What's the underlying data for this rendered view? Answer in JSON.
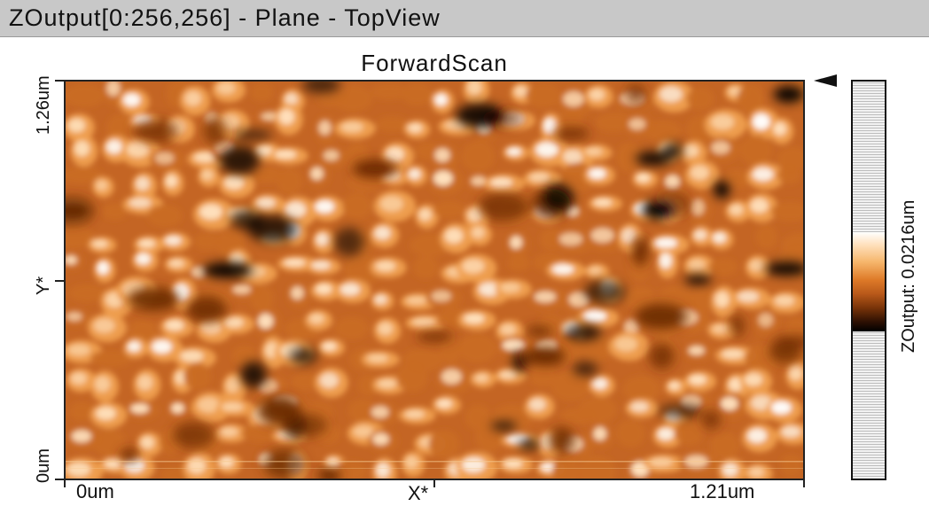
{
  "window": {
    "title": "ZOutput[0:256,256] - Plane - TopView"
  },
  "scan": {
    "title": "ForwardScan",
    "y_axis": {
      "top": "1.26um",
      "mid": "Y*",
      "bottom": "0um"
    },
    "x_axis": {
      "left": "0um",
      "mid": "X*",
      "right": "1.21um"
    },
    "colormap": [
      "#000000",
      "#6b2a05",
      "#c96c25",
      "#f0a050",
      "#ffe2c0",
      "#ffffff"
    ]
  },
  "colorbar": {
    "label": "ZOutput: 0.0216um"
  }
}
